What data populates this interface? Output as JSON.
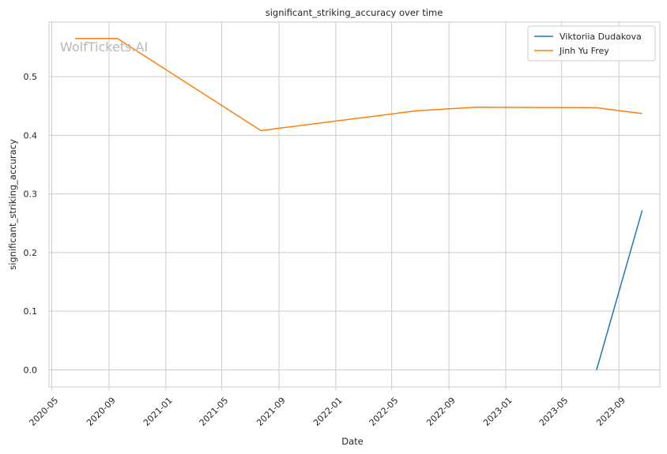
{
  "chart_data": {
    "type": "line",
    "title": "significant_striking_accuracy over time",
    "xlabel": "Date",
    "ylabel": "significant_striking_accuracy",
    "x_ticks": [
      "2020-05",
      "2020-09",
      "2021-01",
      "2021-05",
      "2021-09",
      "2022-01",
      "2022-05",
      "2022-09",
      "2023-01",
      "2023-05",
      "2023-09"
    ],
    "y_ticks": [
      "0.0",
      "0.1",
      "0.2",
      "0.3",
      "0.4",
      "0.5"
    ],
    "xlim": [
      "2020-04-25",
      "2023-11-28"
    ],
    "ylim": [
      -0.029,
      0.593
    ],
    "grid": true,
    "legend_position": "top-right",
    "watermark": "WolfTickets.AI",
    "series": [
      {
        "name": "Viktoriia Dudakova",
        "color": "#1f77b4",
        "points": [
          {
            "x": "2023-07-15",
            "y": 0.0
          },
          {
            "x": "2023-10-21",
            "y": 0.272
          }
        ]
      },
      {
        "name": "Jinh Yu Frey",
        "color": "#ff7f0e",
        "points": [
          {
            "x": "2020-06-20",
            "y": 0.565
          },
          {
            "x": "2020-09-19",
            "y": 0.565
          },
          {
            "x": "2021-07-24",
            "y": 0.408
          },
          {
            "x": "2022-06-25",
            "y": 0.442
          },
          {
            "x": "2022-10-29",
            "y": 0.448
          },
          {
            "x": "2023-07-15",
            "y": 0.447
          },
          {
            "x": "2023-10-21",
            "y": 0.437
          }
        ]
      }
    ]
  }
}
